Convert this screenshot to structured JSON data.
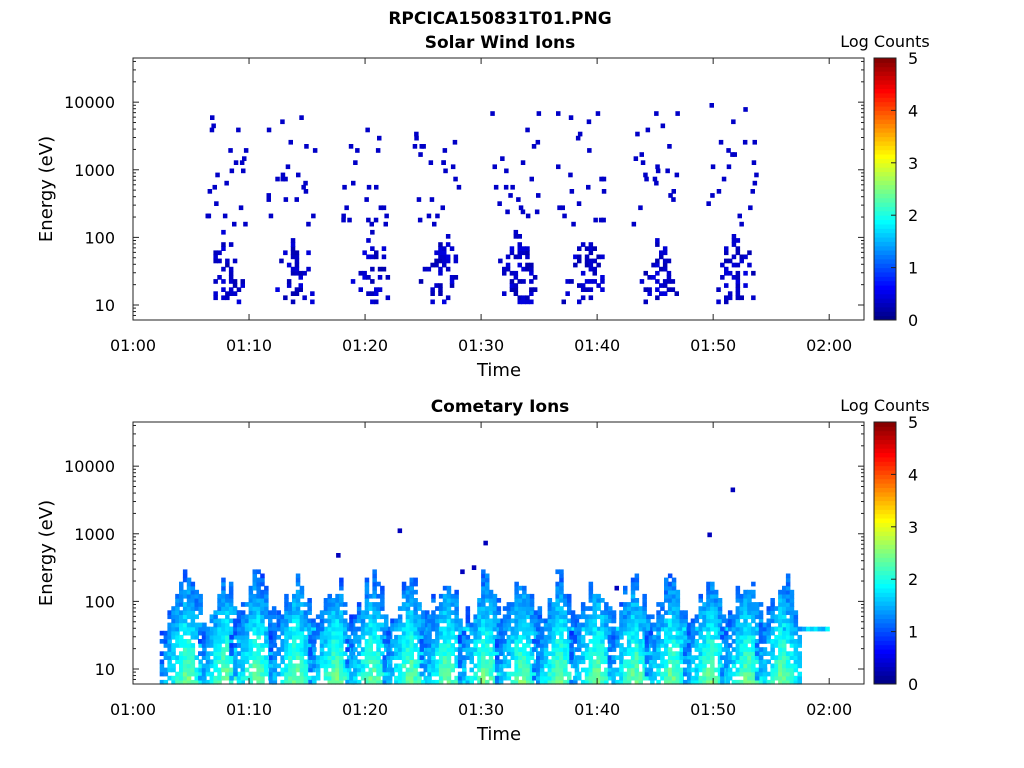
{
  "figure": {
    "title": "RPCICA150831T01.PNG"
  },
  "colorbar": {
    "label": "Log Counts",
    "ticks": [
      "0",
      "1",
      "2",
      "3",
      "4",
      "5"
    ],
    "range": [
      0,
      5
    ],
    "colormap": [
      "#00007f",
      "#0000ff",
      "#007fff",
      "#00ffff",
      "#7fff7f",
      "#ffff00",
      "#ff7f00",
      "#ff0000",
      "#7f0000"
    ]
  },
  "chart_data": [
    {
      "type": "heatmap",
      "title": "Solar Wind Ions",
      "xlabel": "Time",
      "ylabel": "Energy (eV)",
      "yscale": "log",
      "xlim": [
        "01:00",
        "02:03"
      ],
      "ylim": [
        6,
        45000
      ],
      "xticks": [
        "01:00",
        "01:10",
        "01:20",
        "01:30",
        "01:40",
        "01:50",
        "02:00"
      ],
      "yticks": [
        "10",
        "100",
        "1000",
        "10000"
      ],
      "bursts_center_minutes": [
        7.8,
        13.8,
        20.3,
        26.5,
        33.0,
        38.8,
        45.2,
        51.8
      ],
      "burst_core_energy_eV": [
        12,
        100
      ],
      "burst_peak_log_counts": 0.4,
      "sparse_counts_energy_eV": [
        150,
        15000
      ],
      "data_end_minutes": 55
    },
    {
      "type": "heatmap",
      "title": "Cometary Ions",
      "xlabel": "Time",
      "ylabel": "Energy (eV)",
      "yscale": "log",
      "xlim": [
        "01:00",
        "02:03"
      ],
      "ylim": [
        6,
        45000
      ],
      "xticks": [
        "01:00",
        "01:10",
        "01:20",
        "01:30",
        "01:40",
        "01:50",
        "02:00"
      ],
      "yticks": [
        "10",
        "100",
        "1000",
        "10000"
      ],
      "bursts_center_minutes": [
        4.5,
        7.8,
        10.5,
        13.9,
        17.3,
        20.5,
        23.7,
        26.9,
        30.2,
        33.4,
        36.6,
        39.8,
        43.1,
        46.3,
        49.6,
        52.8,
        55.8
      ],
      "burst_core_energy_eV": [
        6,
        250
      ],
      "burst_peak_log_counts": 2.3,
      "band_energy_eV": 38,
      "band_end_minutes": 60.0,
      "isolated_points": [
        {
          "x": 17.5,
          "y": 490
        },
        {
          "x": 22.8,
          "y": 1150
        },
        {
          "x": 28.2,
          "y": 260
        },
        {
          "x": 29.2,
          "y": 320
        },
        {
          "x": 30.2,
          "y": 780
        },
        {
          "x": 41.5,
          "y": 160
        },
        {
          "x": 49.5,
          "y": 970
        },
        {
          "x": 51.5,
          "y": 4800
        }
      ]
    }
  ]
}
